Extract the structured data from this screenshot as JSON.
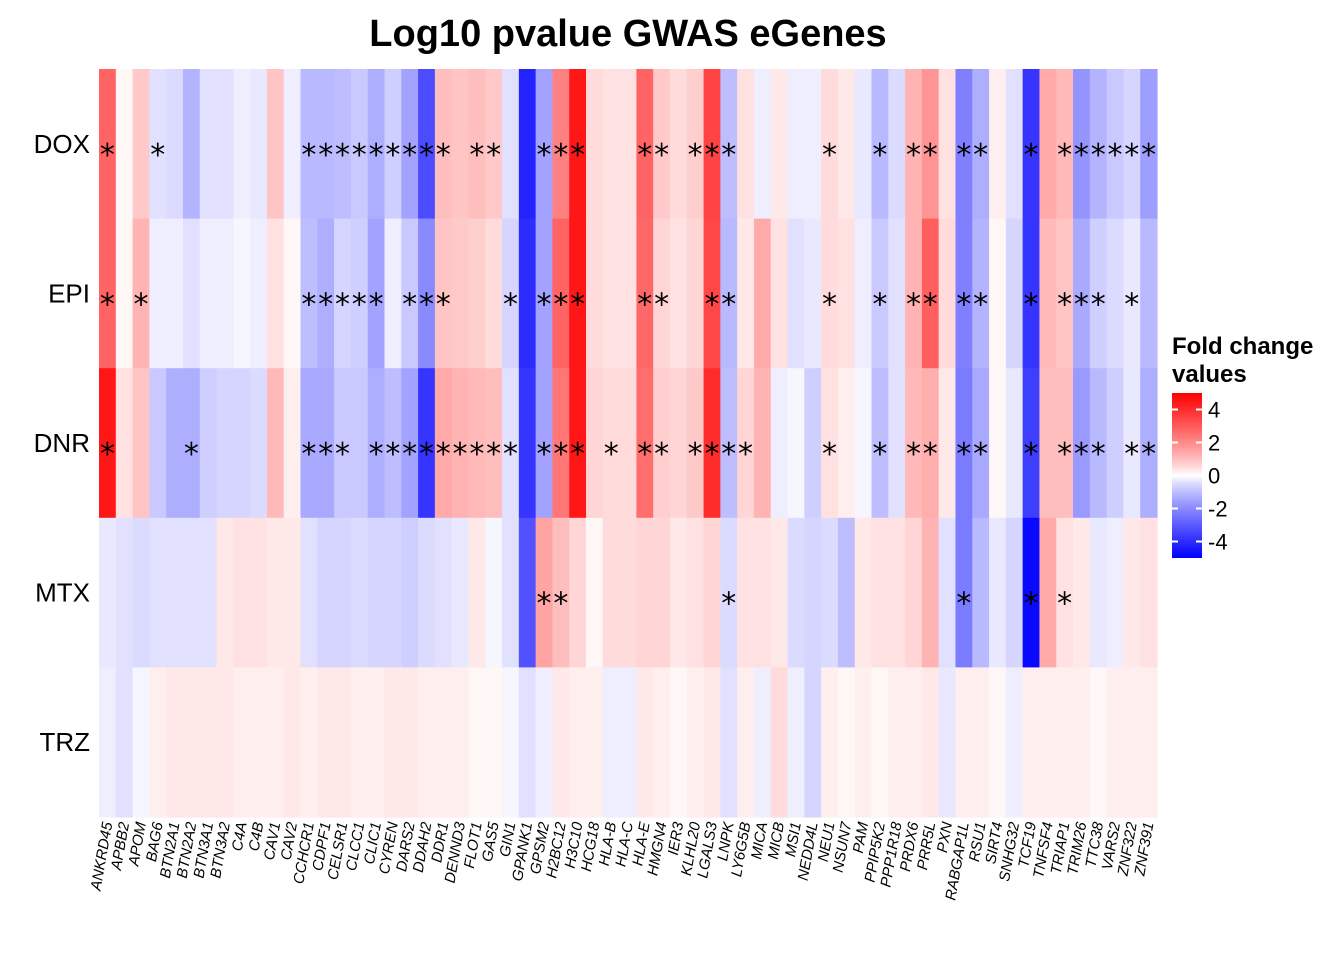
{
  "chart_data": {
    "type": "heatmap",
    "title": "Log10 pvalue GWAS eGenes",
    "rows": [
      "DOX",
      "EPI",
      "DNR",
      "MTX",
      "TRZ"
    ],
    "columns": [
      "ANKRD45",
      "APBB2",
      "APOM",
      "BAG6",
      "BTN2A1",
      "BTN2A2",
      "BTN3A1",
      "BTN3A2",
      "C4A",
      "C4B",
      "CAV1",
      "CAV2",
      "CCHCR1",
      "CDPF1",
      "CELSR1",
      "CLCC1",
      "CLIC1",
      "CYREN",
      "DARS2",
      "DDAH2",
      "DDR1",
      "DENND3",
      "FLOT1",
      "GAS5",
      "GIN1",
      "GPANK1",
      "GPSM2",
      "H2BC12",
      "H3C10",
      "HCG18",
      "HLA-B",
      "HLA-C",
      "HLA-E",
      "HMGN4",
      "IER3",
      "KLHL20",
      "LGALS3",
      "LNPK",
      "LY6G5B",
      "MICA",
      "MICB",
      "MSI1",
      "NEDD4L",
      "NEU1",
      "NSUN7",
      "PAM",
      "PPIP5K2",
      "PPP1R18",
      "PRDX6",
      "PRR5L",
      "PXN",
      "RABGAP1L",
      "RSU1",
      "SIRT4",
      "SNHG32",
      "TCF19",
      "TNFSF4",
      "TRIAP1",
      "TRIM26",
      "TTC38",
      "VARS2",
      "ZNF322",
      "ZNF391"
    ],
    "values": [
      [
        2.8,
        0.1,
        0.8,
        -0.4,
        -0.5,
        -1.2,
        -0.4,
        -0.4,
        -0.2,
        -0.3,
        0.9,
        -0.2,
        -1.1,
        -1.1,
        -1.0,
        -0.8,
        -1.3,
        -0.7,
        -1.5,
        -3.3,
        1.0,
        0.9,
        1.0,
        0.8,
        -0.4,
        -4.2,
        -1.5,
        2.2,
        4.5,
        0.5,
        0.4,
        0.4,
        2.8,
        0.8,
        0.5,
        0.7,
        3.5,
        -1.0,
        0.4,
        -0.2,
        0.3,
        -0.2,
        -0.2,
        0.5,
        0.3,
        -0.3,
        -1.1,
        -0.5,
        1.2,
        1.8,
        0.4,
        -2.2,
        -1.3,
        0.2,
        -0.4,
        -3.8,
        1.4,
        1.1,
        -1.8,
        -1.2,
        -0.8,
        -0.6,
        -1.6
      ],
      [
        2.8,
        0.1,
        1.2,
        -0.2,
        -0.2,
        -0.4,
        -0.2,
        -0.2,
        -0.1,
        -0.2,
        0.4,
        0.1,
        -1.0,
        -1.3,
        -0.6,
        -0.7,
        -1.5,
        -0.2,
        -0.8,
        -2.0,
        0.9,
        0.8,
        0.7,
        0.5,
        -0.6,
        -4.0,
        -1.5,
        2.8,
        4.5,
        0.5,
        0.4,
        0.4,
        2.7,
        0.6,
        0.4,
        0.6,
        3.4,
        -1.1,
        0.3,
        1.4,
        0.4,
        -0.4,
        -0.3,
        0.5,
        0.4,
        -0.2,
        -0.8,
        -0.4,
        1.2,
        2.9,
        0.5,
        -2.2,
        -1.2,
        0.1,
        -0.6,
        -3.8,
        1.1,
        0.9,
        -1.4,
        -0.7,
        -0.5,
        -0.3,
        -1.1
      ],
      [
        4.5,
        0.4,
        0.9,
        -0.8,
        -1.3,
        -1.3,
        -0.7,
        -0.6,
        -0.6,
        -0.5,
        1.1,
        0.2,
        -1.4,
        -1.4,
        -0.8,
        -0.8,
        -1.3,
        -1.0,
        -1.5,
        -3.8,
        1.4,
        1.2,
        1.1,
        1.0,
        -0.4,
        -3.8,
        -1.5,
        2.4,
        4.5,
        0.6,
        0.5,
        0.5,
        2.6,
        0.7,
        0.6,
        0.8,
        4.0,
        -1.0,
        0.6,
        1.2,
        -0.2,
        -0.1,
        -0.7,
        0.4,
        0.2,
        -0.1,
        -1.0,
        -0.4,
        1.1,
        1.3,
        0.3,
        -2.3,
        -1.4,
        0.1,
        -0.3,
        -3.6,
        1.0,
        1.0,
        -1.7,
        -1.1,
        -0.7,
        -0.3,
        -1.3
      ],
      [
        -0.3,
        -0.4,
        -0.5,
        -0.4,
        -0.4,
        -0.4,
        -0.4,
        0.3,
        0.4,
        0.4,
        0.3,
        0.3,
        -0.4,
        -0.6,
        -0.6,
        -0.5,
        -0.6,
        -0.6,
        -0.7,
        -0.5,
        -0.4,
        -0.3,
        0.3,
        -0.1,
        -0.4,
        -3.2,
        1.5,
        1.0,
        0.6,
        0.1,
        0.5,
        0.5,
        0.6,
        0.6,
        0.3,
        0.4,
        0.6,
        -0.5,
        0.4,
        0.4,
        0.3,
        -0.5,
        -0.6,
        -0.5,
        -1.0,
        0.3,
        0.4,
        0.4,
        0.6,
        1.2,
        -0.4,
        -2.3,
        -1.1,
        -0.3,
        -0.6,
        -4.8,
        1.4,
        0.4,
        0.3,
        -0.3,
        -0.2,
        0.3,
        0.4
      ],
      [
        -0.2,
        -0.4,
        -0.1,
        0.2,
        0.3,
        0.3,
        0.3,
        0.3,
        0.2,
        0.2,
        0.2,
        0.3,
        0.2,
        0.3,
        0.3,
        0.2,
        0.2,
        0.3,
        0.3,
        0.2,
        0.2,
        0.2,
        0.1,
        0.1,
        -0.1,
        -0.4,
        -0.2,
        0.3,
        0.2,
        0.2,
        -0.2,
        -0.2,
        0.3,
        0.2,
        0.1,
        0.2,
        0.3,
        -0.4,
        0.2,
        -0.2,
        0.5,
        -0.2,
        -0.6,
        0.2,
        0.1,
        0.2,
        0.1,
        0.2,
        0.2,
        0.3,
        -0.3,
        0.2,
        0.2,
        0.1,
        -0.2,
        0.2,
        0.2,
        0.2,
        0.2,
        0.1,
        0.2,
        0.2,
        0.2
      ]
    ],
    "significance": [
      [
        0,
        3,
        12,
        13,
        14,
        15,
        16,
        17,
        18,
        19,
        20,
        22,
        23,
        26,
        27,
        28,
        32,
        33,
        35,
        36,
        37,
        43,
        46,
        48,
        49,
        51,
        52,
        55,
        57,
        58,
        59,
        60,
        61,
        62
      ],
      [
        0,
        2,
        12,
        13,
        14,
        15,
        16,
        18,
        19,
        20,
        24,
        26,
        27,
        28,
        32,
        33,
        36,
        37,
        43,
        46,
        48,
        49,
        51,
        52,
        55,
        57,
        58,
        59,
        61
      ],
      [
        0,
        5,
        12,
        13,
        14,
        16,
        17,
        18,
        19,
        20,
        21,
        22,
        23,
        24,
        26,
        27,
        28,
        30,
        32,
        33,
        35,
        36,
        37,
        38,
        43,
        46,
        48,
        49,
        51,
        52,
        55,
        57,
        58,
        59,
        61,
        62
      ],
      [
        26,
        27,
        37,
        51,
        55,
        57
      ],
      []
    ],
    "significance_marker": "*",
    "color_scale": {
      "low": "#0000ff",
      "mid": "#ffffff",
      "high": "#ff0000",
      "limits": [
        -5,
        5
      ]
    },
    "legend": {
      "title_line1": "Fold change",
      "title_line2": "values",
      "ticks": [
        4,
        2,
        0,
        -2,
        -4
      ],
      "position": "right"
    }
  }
}
